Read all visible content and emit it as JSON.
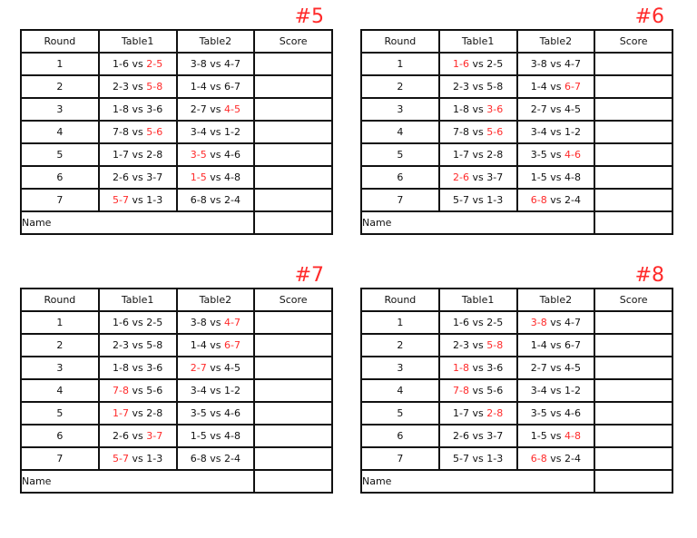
{
  "headers": [
    "Round",
    "Table1",
    "Table2",
    "Score"
  ],
  "name_label": "Name",
  "vs": "vs",
  "highlight_color": "#ff2a2a",
  "sheets": [
    {
      "title": "#5",
      "rows": [
        {
          "round": "1",
          "t1": {
            "a": "1-6",
            "b": "2-5",
            "red": "b"
          },
          "t2": {
            "a": "3-8",
            "b": "4-7",
            "red": ""
          }
        },
        {
          "round": "2",
          "t1": {
            "a": "2-3",
            "b": "5-8",
            "red": "b"
          },
          "t2": {
            "a": "1-4",
            "b": "6-7",
            "red": ""
          }
        },
        {
          "round": "3",
          "t1": {
            "a": "1-8",
            "b": "3-6",
            "red": ""
          },
          "t2": {
            "a": "2-7",
            "b": "4-5",
            "red": "b"
          }
        },
        {
          "round": "4",
          "t1": {
            "a": "7-8",
            "b": "5-6",
            "red": "b"
          },
          "t2": {
            "a": "3-4",
            "b": "1-2",
            "red": ""
          }
        },
        {
          "round": "5",
          "t1": {
            "a": "1-7",
            "b": "2-8",
            "red": ""
          },
          "t2": {
            "a": "3-5",
            "b": "4-6",
            "red": "a"
          }
        },
        {
          "round": "6",
          "t1": {
            "a": "2-6",
            "b": "3-7",
            "red": ""
          },
          "t2": {
            "a": "1-5",
            "b": "4-8",
            "red": "a"
          }
        },
        {
          "round": "7",
          "t1": {
            "a": "5-7",
            "b": "1-3",
            "red": "a"
          },
          "t2": {
            "a": "6-8",
            "b": "2-4",
            "red": ""
          }
        }
      ]
    },
    {
      "title": "#6",
      "rows": [
        {
          "round": "1",
          "t1": {
            "a": "1-6",
            "b": "2-5",
            "red": "a"
          },
          "t2": {
            "a": "3-8",
            "b": "4-7",
            "red": ""
          }
        },
        {
          "round": "2",
          "t1": {
            "a": "2-3",
            "b": "5-8",
            "red": ""
          },
          "t2": {
            "a": "1-4",
            "b": "6-7",
            "red": "b"
          }
        },
        {
          "round": "3",
          "t1": {
            "a": "1-8",
            "b": "3-6",
            "red": "b"
          },
          "t2": {
            "a": "2-7",
            "b": "4-5",
            "red": ""
          }
        },
        {
          "round": "4",
          "t1": {
            "a": "7-8",
            "b": "5-6",
            "red": "b"
          },
          "t2": {
            "a": "3-4",
            "b": "1-2",
            "red": ""
          }
        },
        {
          "round": "5",
          "t1": {
            "a": "1-7",
            "b": "2-8",
            "red": ""
          },
          "t2": {
            "a": "3-5",
            "b": "4-6",
            "red": "b"
          }
        },
        {
          "round": "6",
          "t1": {
            "a": "2-6",
            "b": "3-7",
            "red": "a"
          },
          "t2": {
            "a": "1-5",
            "b": "4-8",
            "red": ""
          }
        },
        {
          "round": "7",
          "t1": {
            "a": "5-7",
            "b": "1-3",
            "red": ""
          },
          "t2": {
            "a": "6-8",
            "b": "2-4",
            "red": "a"
          }
        }
      ]
    },
    {
      "title": "#7",
      "rows": [
        {
          "round": "1",
          "t1": {
            "a": "1-6",
            "b": "2-5",
            "red": ""
          },
          "t2": {
            "a": "3-8",
            "b": "4-7",
            "red": "b"
          }
        },
        {
          "round": "2",
          "t1": {
            "a": "2-3",
            "b": "5-8",
            "red": ""
          },
          "t2": {
            "a": "1-4",
            "b": "6-7",
            "red": "b"
          }
        },
        {
          "round": "3",
          "t1": {
            "a": "1-8",
            "b": "3-6",
            "red": ""
          },
          "t2": {
            "a": "2-7",
            "b": "4-5",
            "red": "a"
          }
        },
        {
          "round": "4",
          "t1": {
            "a": "7-8",
            "b": "5-6",
            "red": "a"
          },
          "t2": {
            "a": "3-4",
            "b": "1-2",
            "red": ""
          }
        },
        {
          "round": "5",
          "t1": {
            "a": "1-7",
            "b": "2-8",
            "red": "a"
          },
          "t2": {
            "a": "3-5",
            "b": "4-6",
            "red": ""
          }
        },
        {
          "round": "6",
          "t1": {
            "a": "2-6",
            "b": "3-7",
            "red": "b"
          },
          "t2": {
            "a": "1-5",
            "b": "4-8",
            "red": ""
          }
        },
        {
          "round": "7",
          "t1": {
            "a": "5-7",
            "b": "1-3",
            "red": "a"
          },
          "t2": {
            "a": "6-8",
            "b": "2-4",
            "red": ""
          }
        }
      ]
    },
    {
      "title": "#8",
      "rows": [
        {
          "round": "1",
          "t1": {
            "a": "1-6",
            "b": "2-5",
            "red": ""
          },
          "t2": {
            "a": "3-8",
            "b": "4-7",
            "red": "a"
          }
        },
        {
          "round": "2",
          "t1": {
            "a": "2-3",
            "b": "5-8",
            "red": "b"
          },
          "t2": {
            "a": "1-4",
            "b": "6-7",
            "red": ""
          }
        },
        {
          "round": "3",
          "t1": {
            "a": "1-8",
            "b": "3-6",
            "red": "a"
          },
          "t2": {
            "a": "2-7",
            "b": "4-5",
            "red": ""
          }
        },
        {
          "round": "4",
          "t1": {
            "a": "7-8",
            "b": "5-6",
            "red": "a"
          },
          "t2": {
            "a": "3-4",
            "b": "1-2",
            "red": ""
          }
        },
        {
          "round": "5",
          "t1": {
            "a": "1-7",
            "b": "2-8",
            "red": "b"
          },
          "t2": {
            "a": "3-5",
            "b": "4-6",
            "red": ""
          }
        },
        {
          "round": "6",
          "t1": {
            "a": "2-6",
            "b": "3-7",
            "red": ""
          },
          "t2": {
            "a": "1-5",
            "b": "4-8",
            "red": "b"
          }
        },
        {
          "round": "7",
          "t1": {
            "a": "5-7",
            "b": "1-3",
            "red": ""
          },
          "t2": {
            "a": "6-8",
            "b": "2-4",
            "red": "a"
          }
        }
      ]
    }
  ]
}
